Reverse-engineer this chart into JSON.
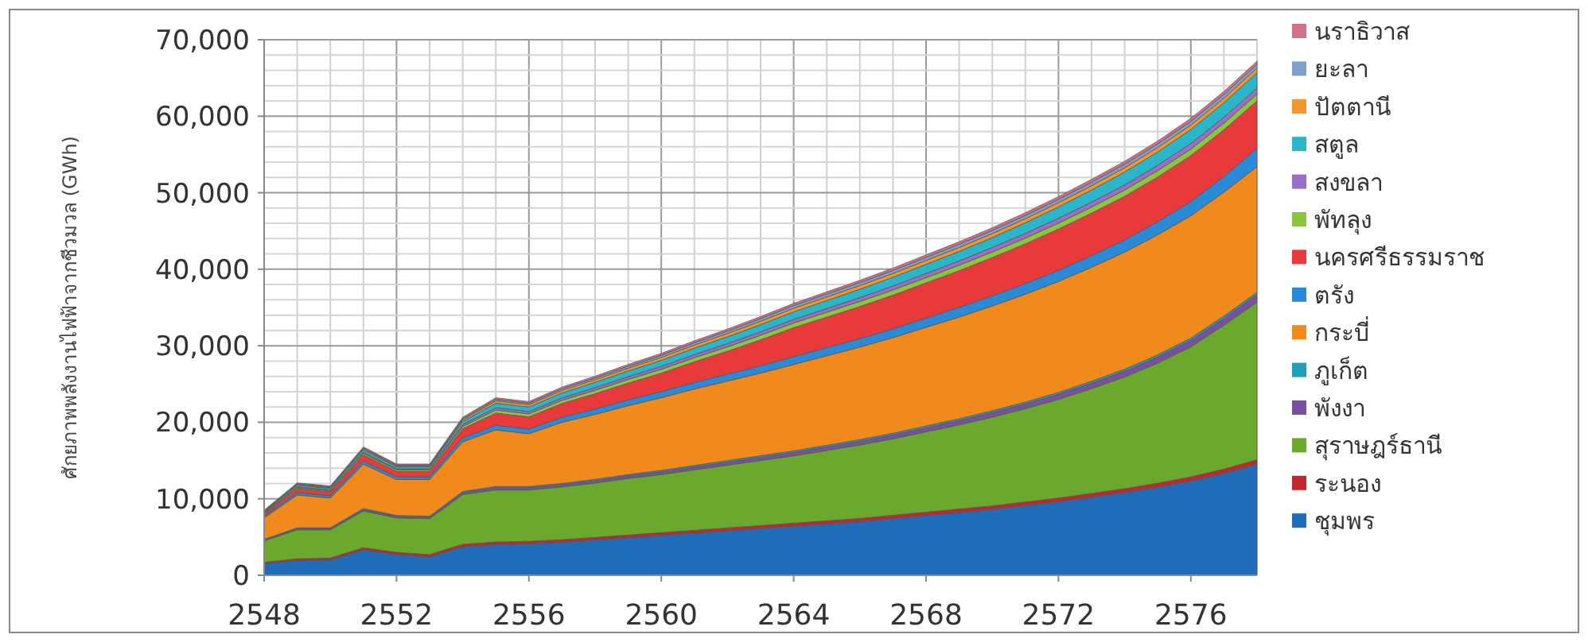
{
  "chart_data": {
    "type": "area",
    "stacked": true,
    "ylabel": "ศักยภาพพลังงานไฟฟ้าจากชีวมวล (GWh)",
    "x": [
      2548,
      2549,
      2550,
      2551,
      2552,
      2553,
      2554,
      2555,
      2556,
      2557,
      2558,
      2559,
      2560,
      2561,
      2562,
      2563,
      2564,
      2565,
      2566,
      2567,
      2568,
      2569,
      2570,
      2571,
      2572,
      2573,
      2574,
      2575,
      2576,
      2577,
      2578
    ],
    "xlim": [
      2548,
      2578
    ],
    "xticks": [
      2548,
      2552,
      2556,
      2560,
      2564,
      2568,
      2572,
      2576
    ],
    "ylim": [
      0,
      70000
    ],
    "yticks": [
      0,
      {
        "value": 10000,
        "label": "10,000"
      },
      {
        "value": 20000,
        "label": "20,000"
      },
      {
        "value": 30000,
        "label": "30,000"
      },
      {
        "value": 40000,
        "label": "40,000"
      },
      {
        "value": 50000,
        "label": "50,000"
      },
      {
        "value": 60000,
        "label": "60,000"
      },
      {
        "value": 70000,
        "label": "70,000"
      }
    ],
    "grid": true,
    "legend": "right",
    "series": [
      {
        "name": "ชุมพร",
        "color": "#1f6cb8",
        "values": [
          1500,
          1900,
          2000,
          3300,
          2700,
          2400,
          3700,
          4000,
          4100,
          4300,
          4600,
          4900,
          5200,
          5500,
          5800,
          6100,
          6400,
          6700,
          7000,
          7400,
          7800,
          8200,
          8600,
          9100,
          9600,
          10200,
          10800,
          11500,
          12300,
          13300,
          14500
        ]
      },
      {
        "name": "ระนอง",
        "color": "#c0282e",
        "values": [
          200,
          250,
          250,
          300,
          300,
          300,
          350,
          350,
          350,
          350,
          350,
          360,
          370,
          380,
          390,
          400,
          410,
          420,
          430,
          440,
          450,
          460,
          470,
          480,
          490,
          500,
          520,
          540,
          560,
          580,
          600
        ]
      },
      {
        "name": "สุราษฎร์ธานี",
        "color": "#6aa82e",
        "values": [
          2800,
          3800,
          3700,
          4800,
          4500,
          4700,
          6500,
          6800,
          6700,
          6900,
          7100,
          7400,
          7600,
          7900,
          8200,
          8500,
          8800,
          9200,
          9600,
          10000,
          10500,
          11000,
          11600,
          12200,
          12900,
          13700,
          14600,
          15700,
          17000,
          18800,
          20600
        ]
      },
      {
        "name": "พังงา",
        "color": "#7b4fa0",
        "values": [
          100,
          150,
          150,
          200,
          200,
          200,
          250,
          300,
          300,
          300,
          320,
          340,
          360,
          380,
          400,
          420,
          440,
          460,
          480,
          500,
          530,
          560,
          590,
          620,
          660,
          700,
          740,
          790,
          840,
          900,
          1000
        ]
      },
      {
        "name": "ภูเก็ต",
        "color": "#1fa0b8",
        "values": [
          100,
          100,
          100,
          120,
          120,
          120,
          150,
          150,
          150,
          150,
          160,
          170,
          180,
          190,
          200,
          200,
          210,
          210,
          220,
          220,
          230,
          230,
          240,
          240,
          250,
          260,
          270,
          280,
          290,
          300,
          300
        ]
      },
      {
        "name": "กระบี่",
        "color": "#f08a1c",
        "values": [
          2800,
          4300,
          3900,
          5800,
          4700,
          4800,
          6500,
          7400,
          6900,
          8000,
          8500,
          9000,
          9500,
          10000,
          10400,
          10800,
          11300,
          11700,
          12100,
          12500,
          12900,
          13300,
          13700,
          14100,
          14500,
          14900,
          15300,
          15700,
          16000,
          16200,
          16400
        ]
      },
      {
        "name": "ตรัง",
        "color": "#2a8ad8",
        "values": [
          200,
          300,
          300,
          400,
          350,
          350,
          500,
          600,
          600,
          650,
          700,
          750,
          800,
          850,
          900,
          950,
          1000,
          1050,
          1100,
          1150,
          1200,
          1260,
          1320,
          1380,
          1450,
          1520,
          1600,
          1700,
          1850,
          2050,
          2400
        ]
      },
      {
        "name": "นครศรีธรรมราช",
        "color": "#e83a3a",
        "values": [
          300,
          500,
          500,
          800,
          700,
          700,
          1200,
          1600,
          1600,
          1800,
          2000,
          2200,
          2400,
          2700,
          3000,
          3400,
          3800,
          4000,
          4200,
          4400,
          4600,
          4800,
          5000,
          5200,
          5400,
          5550,
          5700,
          5850,
          6000,
          6100,
          6200
        ]
      },
      {
        "name": "พัทลุง",
        "color": "#8cc63e",
        "values": [
          100,
          150,
          150,
          200,
          200,
          200,
          300,
          400,
          400,
          420,
          450,
          480,
          510,
          540,
          570,
          600,
          620,
          640,
          660,
          680,
          700,
          720,
          740,
          760,
          780,
          800,
          820,
          840,
          860,
          880,
          900
        ]
      },
      {
        "name": "สงขลา",
        "color": "#9b6fc8",
        "values": [
          100,
          120,
          120,
          150,
          150,
          150,
          250,
          300,
          300,
          320,
          340,
          360,
          380,
          400,
          420,
          440,
          460,
          480,
          500,
          520,
          540,
          560,
          580,
          600,
          620,
          640,
          660,
          690,
          720,
          760,
          800
        ]
      },
      {
        "name": "สตูล",
        "color": "#2bb5c8",
        "values": [
          100,
          200,
          200,
          300,
          250,
          250,
          400,
          600,
          600,
          650,
          700,
          750,
          800,
          850,
          900,
          950,
          1000,
          1050,
          1100,
          1150,
          1200,
          1250,
          1300,
          1400,
          1500,
          1600,
          1700,
          1750,
          1850,
          1900,
          2000
        ]
      },
      {
        "name": "ปัตตานี",
        "color": "#f5962a",
        "values": [
          70,
          100,
          100,
          150,
          130,
          130,
          200,
          300,
          300,
          320,
          340,
          360,
          380,
          400,
          420,
          440,
          460,
          470,
          480,
          490,
          500,
          510,
          520,
          530,
          540,
          550,
          560,
          570,
          580,
          590,
          600
        ]
      },
      {
        "name": "ยะลา",
        "color": "#7fa0c8",
        "values": [
          60,
          100,
          100,
          130,
          120,
          120,
          180,
          200,
          200,
          220,
          240,
          260,
          280,
          300,
          320,
          340,
          360,
          370,
          380,
          390,
          400,
          410,
          420,
          430,
          440,
          450,
          460,
          470,
          480,
          490,
          500
        ]
      },
      {
        "name": "นราธิวาส",
        "color": "#d4708a",
        "values": [
          70,
          100,
          100,
          130,
          120,
          120,
          170,
          200,
          200,
          210,
          220,
          230,
          240,
          250,
          260,
          270,
          280,
          290,
          300,
          310,
          320,
          330,
          340,
          350,
          360,
          370,
          380,
          385,
          390,
          395,
          400
        ]
      }
    ]
  }
}
